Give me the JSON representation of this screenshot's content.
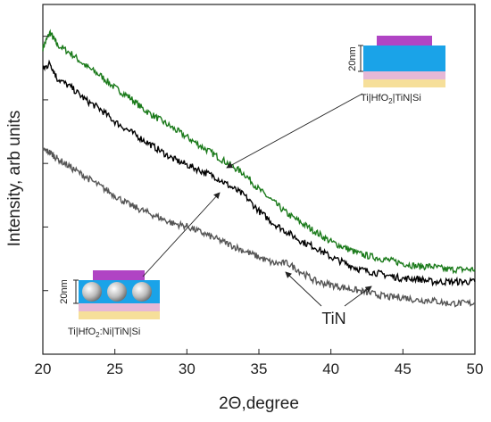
{
  "chart_data": {
    "type": "line",
    "xlabel": "2Θ,degree",
    "ylabel": "Intensity, arb units",
    "xlim": [
      20,
      50
    ],
    "xticks": [
      "20",
      "25",
      "30",
      "35",
      "40",
      "45",
      "50"
    ],
    "y_ticks_count": 5,
    "grid": false,
    "series": [
      {
        "color": "#1a7a1a",
        "x": [
          20,
          20.5,
          21,
          22,
          23,
          24,
          25,
          26,
          27,
          28,
          29,
          30,
          31,
          32,
          33,
          34,
          35,
          36,
          37,
          38,
          39,
          40,
          41,
          42,
          43,
          44,
          45,
          46,
          47,
          48,
          49,
          50
        ],
        "y": [
          0.95,
          1.0,
          0.96,
          0.93,
          0.89,
          0.86,
          0.82,
          0.79,
          0.75,
          0.72,
          0.69,
          0.66,
          0.63,
          0.6,
          0.57,
          0.54,
          0.49,
          0.45,
          0.41,
          0.38,
          0.35,
          0.32,
          0.3,
          0.28,
          0.27,
          0.26,
          0.25,
          0.24,
          0.24,
          0.23,
          0.23,
          0.23
        ]
      },
      {
        "color": "#000000",
        "x": [
          20,
          20.5,
          21,
          22,
          23,
          24,
          25,
          26,
          27,
          28,
          29,
          30,
          31,
          32,
          33,
          34,
          35,
          36,
          37,
          38,
          39,
          40,
          41,
          42,
          43,
          44,
          45,
          46,
          47,
          48,
          49,
          50
        ],
        "y": [
          0.88,
          0.9,
          0.85,
          0.82,
          0.78,
          0.75,
          0.71,
          0.68,
          0.65,
          0.62,
          0.59,
          0.57,
          0.55,
          0.53,
          0.5,
          0.47,
          0.42,
          0.38,
          0.35,
          0.32,
          0.3,
          0.27,
          0.25,
          0.23,
          0.22,
          0.21,
          0.2,
          0.2,
          0.19,
          0.19,
          0.19,
          0.19
        ]
      },
      {
        "color": "#555555",
        "x": [
          20,
          20.5,
          21,
          22,
          23,
          24,
          25,
          26,
          27,
          28,
          29,
          30,
          31,
          32,
          33,
          34,
          35,
          36,
          37,
          38,
          39,
          40,
          41,
          42,
          43,
          44,
          45,
          46,
          47,
          48,
          49,
          50
        ],
        "y": [
          0.62,
          0.61,
          0.59,
          0.56,
          0.53,
          0.5,
          0.47,
          0.44,
          0.42,
          0.4,
          0.38,
          0.37,
          0.35,
          0.33,
          0.31,
          0.29,
          0.27,
          0.25,
          0.25,
          0.22,
          0.19,
          0.18,
          0.17,
          0.16,
          0.15,
          0.14,
          0.14,
          0.13,
          0.13,
          0.12,
          0.12,
          0.12
        ]
      }
    ],
    "annotations": {
      "inset_top_label": "Ti|HfO2|TiN|Si",
      "inset_top_thickness": "20nm",
      "inset_bottom_label": "Ti|HfO2:Ni|TiN|Si",
      "inset_bottom_thickness": "20nm",
      "tin_label": "TiN"
    }
  },
  "colors": {
    "violet": "#b044c4",
    "cyan": "#1aa3e8",
    "pink": "#e6b8d6",
    "yellow": "#f6df9a",
    "sphere": "#bdbdbd"
  }
}
